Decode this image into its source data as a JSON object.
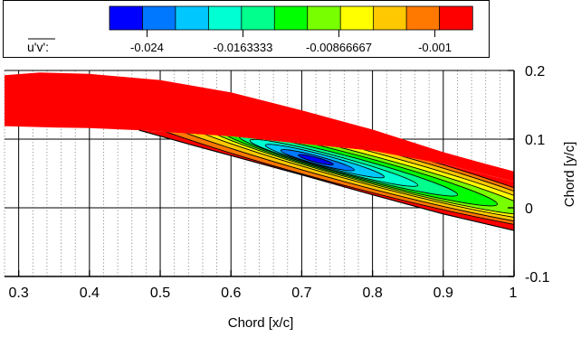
{
  "chart_data": {
    "type": "heatmap",
    "xlabel": "Chord [x/c]",
    "ylabel": "Chord [y/c]",
    "xlim": [
      0.28,
      1.0
    ],
    "ylim": [
      -0.1,
      0.2
    ],
    "x_ticks": [
      {
        "value": 0.3,
        "label": "0.3"
      },
      {
        "value": 0.4,
        "label": "0.4"
      },
      {
        "value": 0.5,
        "label": "0.5"
      },
      {
        "value": 0.6,
        "label": "0.6"
      },
      {
        "value": 0.7,
        "label": "0.7"
      },
      {
        "value": 0.8,
        "label": "0.8"
      },
      {
        "value": 0.9,
        "label": "0.9"
      },
      {
        "value": 1.0,
        "label": "1"
      }
    ],
    "y_ticks": [
      {
        "value": 0.2,
        "label": "0.2"
      },
      {
        "value": 0.1,
        "label": "0.1"
      },
      {
        "value": 0.0,
        "label": "0"
      },
      {
        "value": -0.1,
        "label": "-0.1"
      }
    ],
    "grid": "vertical dotted lines every 0.02 x/c; solid lines at major ticks",
    "colorbar": {
      "variable": "u'v'",
      "label_suffix": ":",
      "range": [
        -0.027,
        0.002
      ],
      "colors": [
        "#0000ff",
        "#0078ff",
        "#00c8ff",
        "#00ffd2",
        "#00ff8c",
        "#00ff00",
        "#78ff00",
        "#ffff00",
        "#ffc800",
        "#ff7800",
        "#ff0000"
      ],
      "tick_labels": [
        {
          "value": -0.024,
          "label": "-0.024"
        },
        {
          "value": -0.0163333,
          "label": "-0.0163333"
        },
        {
          "value": -0.00866667,
          "label": "-0.00866667"
        },
        {
          "value": -0.001,
          "label": "-0.001"
        }
      ]
    },
    "field": {
      "band_description": "near-zero (red) band above the shear layer",
      "band_upper": [
        [
          0.28,
          0.193
        ],
        [
          0.33,
          0.197
        ],
        [
          0.4,
          0.195
        ],
        [
          0.5,
          0.186
        ],
        [
          0.6,
          0.168
        ],
        [
          0.7,
          0.142
        ],
        [
          0.8,
          0.114
        ],
        [
          0.9,
          0.081
        ],
        [
          0.96,
          0.064
        ],
        [
          1.0,
          0.053
        ]
      ],
      "band_lower": [
        [
          0.28,
          0.119
        ],
        [
          0.35,
          0.117
        ],
        [
          0.4,
          0.116
        ],
        [
          0.47,
          0.113
        ]
      ],
      "surface_line": [
        [
          0.47,
          0.113
        ],
        [
          0.55,
          0.09
        ],
        [
          0.6,
          0.076
        ],
        [
          0.7,
          0.048
        ],
        [
          0.8,
          0.019
        ],
        [
          0.9,
          -0.009
        ],
        [
          1.0,
          -0.033
        ]
      ],
      "shear_layer_upper": [
        [
          0.47,
          0.113
        ],
        [
          0.6,
          0.104
        ],
        [
          0.7,
          0.093
        ],
        [
          0.8,
          0.083
        ],
        [
          0.9,
          0.064
        ],
        [
          1.0,
          0.038
        ]
      ],
      "min_value_location": [
        0.73,
        0.072
      ],
      "min_value": -0.026
    }
  }
}
